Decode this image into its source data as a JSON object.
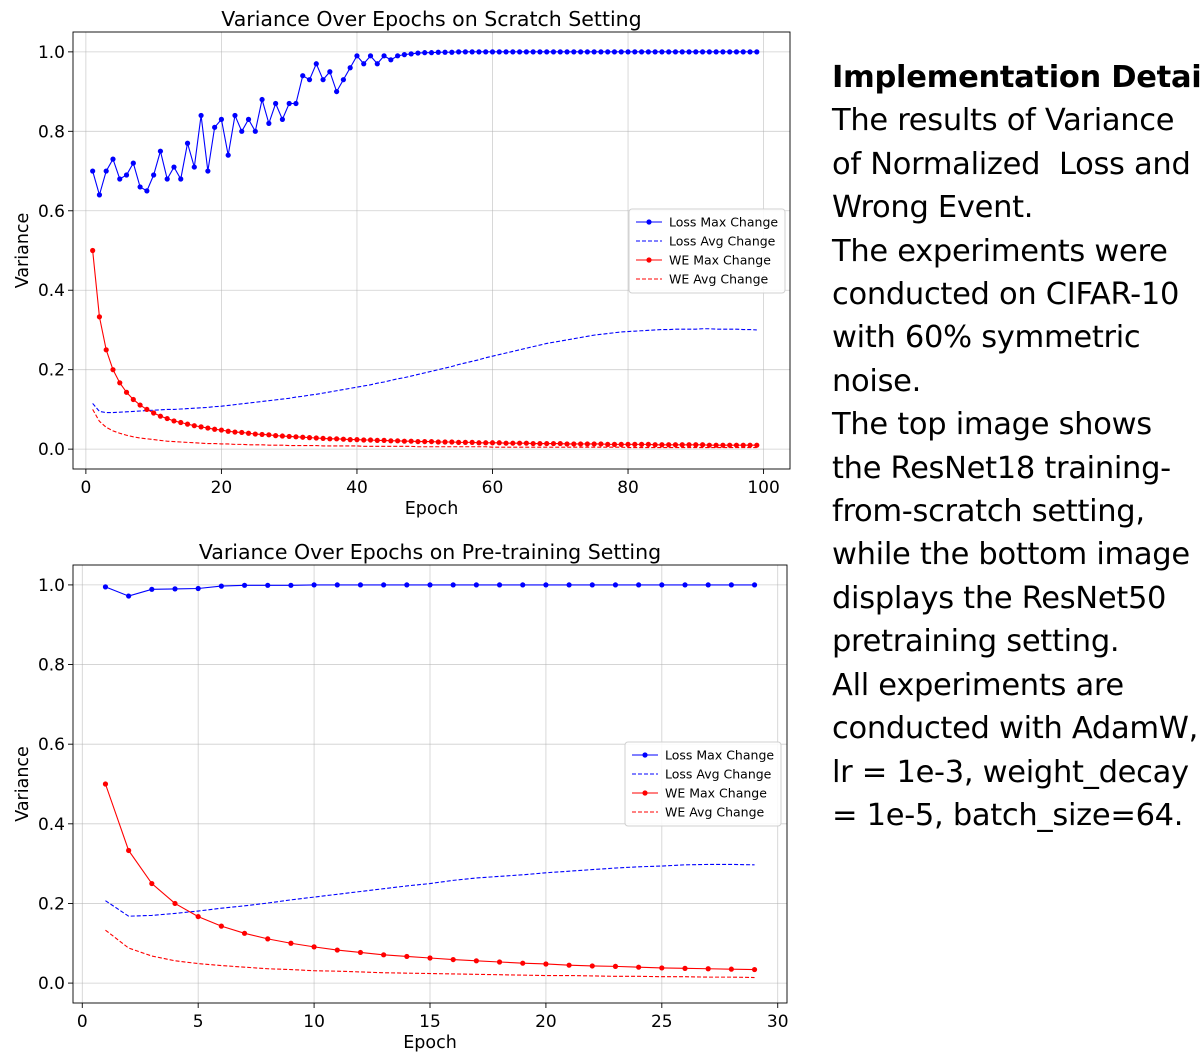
{
  "chart_data": [
    {
      "type": "line",
      "title": "Variance Over Epochs on Scratch Setting",
      "xlabel": "Epoch",
      "ylabel": "Variance",
      "xlim": [
        -1.9,
        103.9
      ],
      "ylim": [
        -0.05,
        1.05
      ],
      "xticks": [
        0,
        20,
        40,
        60,
        80,
        100
      ],
      "yticks": [
        0.0,
        0.2,
        0.4,
        0.6,
        0.8,
        1.0
      ],
      "grid": true,
      "legend_position": "center-right",
      "series": [
        {
          "name": "Loss Max Change",
          "color": "#0000ff",
          "style": "solid-marker",
          "x_start": 1,
          "x_step": 1,
          "values": [
            0.7,
            0.64,
            0.7,
            0.73,
            0.68,
            0.69,
            0.72,
            0.66,
            0.65,
            0.69,
            0.75,
            0.68,
            0.71,
            0.68,
            0.77,
            0.71,
            0.84,
            0.7,
            0.81,
            0.83,
            0.74,
            0.84,
            0.8,
            0.83,
            0.8,
            0.88,
            0.82,
            0.87,
            0.83,
            0.87,
            0.87,
            0.94,
            0.93,
            0.97,
            0.93,
            0.95,
            0.9,
            0.93,
            0.96,
            0.99,
            0.97,
            0.99,
            0.97,
            0.99,
            0.98,
            0.99,
            0.993,
            0.995,
            0.997,
            0.998,
            0.998,
            0.999,
            0.999,
            0.999,
            1.0,
            1.0,
            1.0,
            1.0,
            1.0,
            1.0,
            1.0,
            1.0,
            1.0,
            1.0,
            1.0,
            1.0,
            1.0,
            1.0,
            1.0,
            1.0,
            1.0,
            1.0,
            1.0,
            1.0,
            1.0,
            1.0,
            1.0,
            1.0,
            1.0,
            1.0,
            1.0,
            1.0,
            1.0,
            1.0,
            1.0,
            1.0,
            1.0,
            1.0,
            1.0,
            1.0,
            1.0,
            1.0,
            1.0,
            1.0,
            1.0,
            1.0,
            1.0,
            1.0,
            1.0
          ]
        },
        {
          "name": "Loss Avg Change",
          "color": "#0000ff",
          "style": "dashed",
          "x_start": 1,
          "x_step": 1,
          "values": [
            0.115,
            0.095,
            0.092,
            0.092,
            0.093,
            0.094,
            0.095,
            0.096,
            0.097,
            0.098,
            0.099,
            0.1,
            0.1,
            0.101,
            0.102,
            0.103,
            0.104,
            0.105,
            0.107,
            0.108,
            0.11,
            0.112,
            0.114,
            0.116,
            0.118,
            0.12,
            0.122,
            0.124,
            0.126,
            0.128,
            0.131,
            0.133,
            0.136,
            0.138,
            0.141,
            0.144,
            0.147,
            0.15,
            0.153,
            0.156,
            0.159,
            0.162,
            0.166,
            0.169,
            0.173,
            0.177,
            0.18,
            0.184,
            0.188,
            0.192,
            0.196,
            0.2,
            0.204,
            0.208,
            0.213,
            0.217,
            0.221,
            0.225,
            0.23,
            0.234,
            0.238,
            0.242,
            0.246,
            0.25,
            0.254,
            0.258,
            0.262,
            0.266,
            0.269,
            0.272,
            0.275,
            0.278,
            0.281,
            0.284,
            0.287,
            0.289,
            0.291,
            0.293,
            0.295,
            0.296,
            0.297,
            0.298,
            0.299,
            0.3,
            0.301,
            0.301,
            0.302,
            0.302,
            0.302,
            0.302,
            0.303,
            0.303,
            0.302,
            0.302,
            0.302,
            0.302,
            0.301,
            0.301,
            0.3
          ]
        },
        {
          "name": "WE Max Change",
          "color": "#ff0000",
          "style": "solid-marker",
          "x_start": 1,
          "x_step": 1,
          "values": [
            0.5,
            0.333,
            0.25,
            0.2,
            0.167,
            0.143,
            0.125,
            0.111,
            0.1,
            0.091,
            0.083,
            0.077,
            0.071,
            0.067,
            0.063,
            0.059,
            0.056,
            0.053,
            0.05,
            0.048,
            0.045,
            0.043,
            0.042,
            0.04,
            0.038,
            0.037,
            0.036,
            0.034,
            0.033,
            0.032,
            0.031,
            0.03,
            0.029,
            0.028,
            0.027,
            0.026,
            0.026,
            0.025,
            0.024,
            0.024,
            0.023,
            0.023,
            0.022,
            0.022,
            0.021,
            0.021,
            0.02,
            0.02,
            0.019,
            0.019,
            0.019,
            0.018,
            0.018,
            0.018,
            0.017,
            0.017,
            0.017,
            0.016,
            0.016,
            0.016,
            0.016,
            0.015,
            0.015,
            0.015,
            0.015,
            0.014,
            0.014,
            0.014,
            0.014,
            0.014,
            0.013,
            0.013,
            0.013,
            0.013,
            0.013,
            0.013,
            0.012,
            0.012,
            0.012,
            0.012,
            0.012,
            0.012,
            0.012,
            0.011,
            0.011,
            0.011,
            0.011,
            0.011,
            0.011,
            0.011,
            0.011,
            0.01,
            0.01,
            0.01,
            0.01,
            0.01,
            0.01,
            0.01,
            0.01
          ]
        },
        {
          "name": "WE Avg Change",
          "color": "#ff0000",
          "style": "dashed",
          "x_start": 1,
          "x_step": 1,
          "values": [
            0.1,
            0.07,
            0.055,
            0.046,
            0.04,
            0.035,
            0.031,
            0.028,
            0.026,
            0.024,
            0.022,
            0.02,
            0.019,
            0.018,
            0.017,
            0.016,
            0.015,
            0.014,
            0.014,
            0.013,
            0.013,
            0.012,
            0.012,
            0.011,
            0.011,
            0.011,
            0.01,
            0.01,
            0.01,
            0.009,
            0.009,
            0.009,
            0.009,
            0.009,
            0.008,
            0.008,
            0.008,
            0.008,
            0.008,
            0.008,
            0.007,
            0.007,
            0.007,
            0.007,
            0.007,
            0.007,
            0.007,
            0.007,
            0.006,
            0.006,
            0.006,
            0.006,
            0.006,
            0.006,
            0.006,
            0.006,
            0.006,
            0.006,
            0.006,
            0.005,
            0.005,
            0.005,
            0.005,
            0.005,
            0.005,
            0.005,
            0.005,
            0.005,
            0.005,
            0.005,
            0.005,
            0.005,
            0.005,
            0.005,
            0.005,
            0.005,
            0.005,
            0.005,
            0.005,
            0.004,
            0.004,
            0.004,
            0.004,
            0.004,
            0.004,
            0.004,
            0.004,
            0.004,
            0.004,
            0.004,
            0.004,
            0.004,
            0.004,
            0.004,
            0.004,
            0.004,
            0.004,
            0.004,
            0.004
          ]
        }
      ]
    },
    {
      "type": "line",
      "title": "Variance Over Epochs on Pre-training Setting",
      "xlabel": "Epoch",
      "ylabel": "Variance",
      "xlim": [
        -0.4,
        30.4
      ],
      "ylim": [
        -0.05,
        1.05
      ],
      "xticks": [
        0,
        5,
        10,
        15,
        20,
        25,
        30
      ],
      "yticks": [
        0.0,
        0.2,
        0.4,
        0.6,
        0.8,
        1.0
      ],
      "grid": true,
      "legend_position": "center-right",
      "series": [
        {
          "name": "Loss Max Change",
          "color": "#0000ff",
          "style": "solid-marker",
          "x_start": 1,
          "x_step": 1,
          "values": [
            0.995,
            0.972,
            0.989,
            0.99,
            0.991,
            0.997,
            0.999,
            0.999,
            0.999,
            1.0,
            1.0,
            1.0,
            1.0,
            1.0,
            1.0,
            1.0,
            1.0,
            1.0,
            1.0,
            1.0,
            1.0,
            1.0,
            1.0,
            1.0,
            1.0,
            1.0,
            1.0,
            1.0,
            1.0
          ]
        },
        {
          "name": "Loss Avg Change",
          "color": "#0000ff",
          "style": "dashed",
          "x_start": 1,
          "x_step": 1,
          "values": [
            0.207,
            0.168,
            0.17,
            0.175,
            0.181,
            0.188,
            0.194,
            0.201,
            0.209,
            0.216,
            0.223,
            0.23,
            0.237,
            0.244,
            0.25,
            0.258,
            0.264,
            0.268,
            0.272,
            0.277,
            0.281,
            0.285,
            0.289,
            0.292,
            0.294,
            0.297,
            0.298,
            0.298,
            0.297
          ]
        },
        {
          "name": "WE Max Change",
          "color": "#ff0000",
          "style": "solid-marker",
          "x_start": 1,
          "x_step": 1,
          "values": [
            0.5,
            0.333,
            0.25,
            0.2,
            0.167,
            0.143,
            0.125,
            0.111,
            0.1,
            0.091,
            0.083,
            0.077,
            0.071,
            0.067,
            0.063,
            0.059,
            0.056,
            0.053,
            0.05,
            0.048,
            0.045,
            0.043,
            0.042,
            0.04,
            0.038,
            0.037,
            0.036,
            0.035,
            0.034
          ]
        },
        {
          "name": "WE Avg Change",
          "color": "#ff0000",
          "style": "dashed",
          "x_start": 1,
          "x_step": 1,
          "values": [
            0.133,
            0.088,
            0.068,
            0.056,
            0.049,
            0.044,
            0.04,
            0.036,
            0.034,
            0.031,
            0.03,
            0.028,
            0.026,
            0.025,
            0.024,
            0.023,
            0.022,
            0.021,
            0.02,
            0.019,
            0.019,
            0.018,
            0.017,
            0.017,
            0.016,
            0.016,
            0.015,
            0.015,
            0.014
          ]
        }
      ]
    }
  ],
  "side_text": {
    "heading": "Implementation Details",
    "lines": [
      "The results of Variance",
      "of Normalized  Loss and",
      "Wrong Event.",
      "The experiments were",
      "conducted on CIFAR-10",
      "with 60% symmetric",
      "noise.",
      "The top image shows",
      "the ResNet18 training-",
      "from-scratch setting,",
      "while the bottom image",
      "displays the ResNet50",
      "pretraining setting.",
      "All experiments are",
      "conducted with AdamW,",
      "lr = 1e-3, weight_decay",
      "= 1e-5, batch_size=64."
    ]
  }
}
